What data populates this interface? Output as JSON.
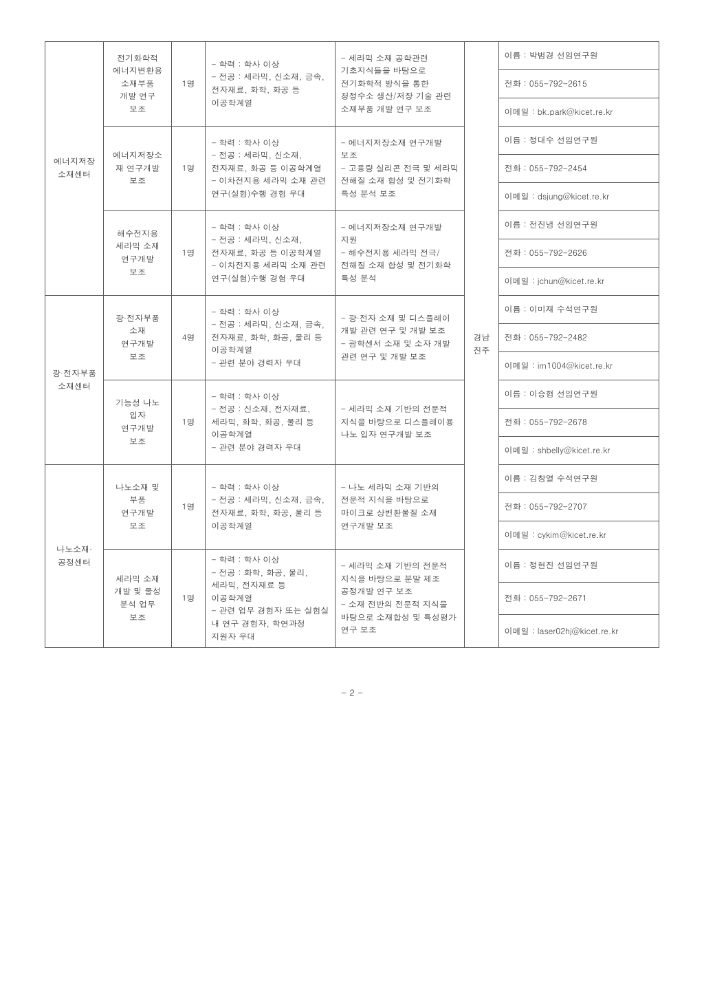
{
  "pageNumber": "- 2 -",
  "location": "경남\n진주",
  "groups": [
    {
      "center": "에너지저장\n소재센터",
      "rows": [
        {
          "field": "전기화학적\n에너지변환용\n소재부품\n개발 연구\n보조",
          "count": "1명",
          "qual": "- 학력 : 학사 이상\n- 전공 : 세라믹, 신소재, 금속, 전자재료, 화학, 화공 등 이공학계열",
          "desc": "- 세라믹 소재 공학관련 기초지식들을 바탕으로 전기화학적 방식을 통한 청정수소 생산/저장 기술 관련 소재부품 개발 연구 보조",
          "contact": {
            "name": "이름 : 박범경 선임연구원",
            "tel": "전화 : 055-792-2615",
            "email": "이메일 : bk.park@kicet.re.kr"
          }
        },
        {
          "field": "에너지저장소\n재 연구개발\n보조",
          "count": "1명",
          "qual": "- 학력 : 학사 이상\n- 전공 : 세라믹, 신소재, 전자재료, 화공 등 이공학계열\n- 이차전지용 세라믹 소재 관련 연구(실험)수행 경험 우대",
          "desc": "- 에너지저장소재 연구개발 보조\n- 고용량 실리콘 전극 및 세라믹 전해질 소재 합성 및 전기화학 특성 분석 보조",
          "contact": {
            "name": "이름 : 정대수 선임연구원",
            "tel": "전화 : 055-792-2454",
            "email": "이메일 : dsjung@kicet.re.kr"
          }
        },
        {
          "field": "해수전지용\n세라믹 소재\n연구개발\n보조",
          "count": "1명",
          "qual": "- 학력 : 학사 이상\n- 전공 : 세라믹, 신소재, 전자재료, 화공 등 이공학계열\n- 이차전지용 세라믹 소재 관련 연구(실험)수행 경험 우대",
          "desc": "- 에너지저장소재 연구개발 지원\n- 해수전지용 세라믹 전극/전해질 소재 합성 및 전기화학 특성 분석",
          "contact": {
            "name": "이름 : 전진녕 선임연구원",
            "tel": "전화 : 055-792-2626",
            "email": "이메일 : jchun@kicet.re.kr"
          }
        }
      ]
    },
    {
      "center": "광·전자부품\n소재센터",
      "rows": [
        {
          "field": "광·전자부품\n소재\n연구개발\n보조",
          "count": "4명",
          "qual": "- 학력 : 학사 이상\n- 전공 : 세라믹, 신소재, 금속, 전자재료, 화학, 화공, 물리 등 이공학계열\n- 관련 분야 경력자 우대",
          "desc": "- 광·전자 소재 및 디스플레이 개발 관련 연구 및 개발 보조\n- 광학센서 소재 및 소자 개발 관련 연구 및 개발 보조",
          "contact": {
            "name": "이름 : 이미재 수석연구원",
            "tel": "전화 : 055-792-2482",
            "email": "이메일 : im1004@kicet.re.kr"
          }
        },
        {
          "field": "기능성 나노\n입자\n연구개발\n보조",
          "count": "1명",
          "qual": "- 학력 : 학사 이상\n- 전공 : 신소재, 전자재료, 세라믹, 화학, 화공, 물리 등 이공학계열\n- 관련 분야 경력자 우대",
          "desc": "- 세라믹 소재 기반의 전문적 지식을 바탕으로 디스플레이용 나노 입자 연구개발 보조",
          "contact": {
            "name": "이름 : 이승협 선임연구원",
            "tel": "전화 : 055-792-2678",
            "email": "이메일 : shbelly@kicet.re.kr"
          }
        }
      ]
    },
    {
      "center": "나노소재·\n공정센터",
      "rows": [
        {
          "field": "나노소재 및\n부품\n연구개발\n보조",
          "count": "1명",
          "qual": "- 학력 : 학사 이상\n- 전공 : 세라믹, 신소재, 금속, 전자재료, 화학, 화공, 물리 등 이공학계열",
          "desc": "- 나노 세라믹 소재 기반의 전문적 지식을 바탕으로 마이크로 상변환물질 소재 연구개발 보조",
          "contact": {
            "name": "이름 : 김창열 수석연구원",
            "tel": "전화 : 055-792-2707",
            "email": "이메일 : cykim@kicet.re.kr"
          }
        },
        {
          "field": "세라믹 소재\n개발 및 물성\n분석 업무\n보조",
          "count": "1명",
          "qual": "- 학력 : 학사 이상\n- 전공 : 화학, 화공, 물리, 세라믹, 전자재료 등 이공학계열\n- 관련 업무 경험자 또는 실험실 내 연구 경험자, 학연과정 지원자 우대",
          "desc": "- 세라믹 소재 기반의 전문적 지식을 바탕으로 분말 제조 공정개발 연구 보조\n- 소재 전반의 전문적 지식을 바탕으로 소재합성 및 특성평가 연구 보조",
          "contact": {
            "name": "이름 : 정현진 선임연구원",
            "tel": "전화 : 055-792-2671",
            "email": "이메일 : laser02hj@kicet.re.kr"
          }
        }
      ]
    }
  ]
}
